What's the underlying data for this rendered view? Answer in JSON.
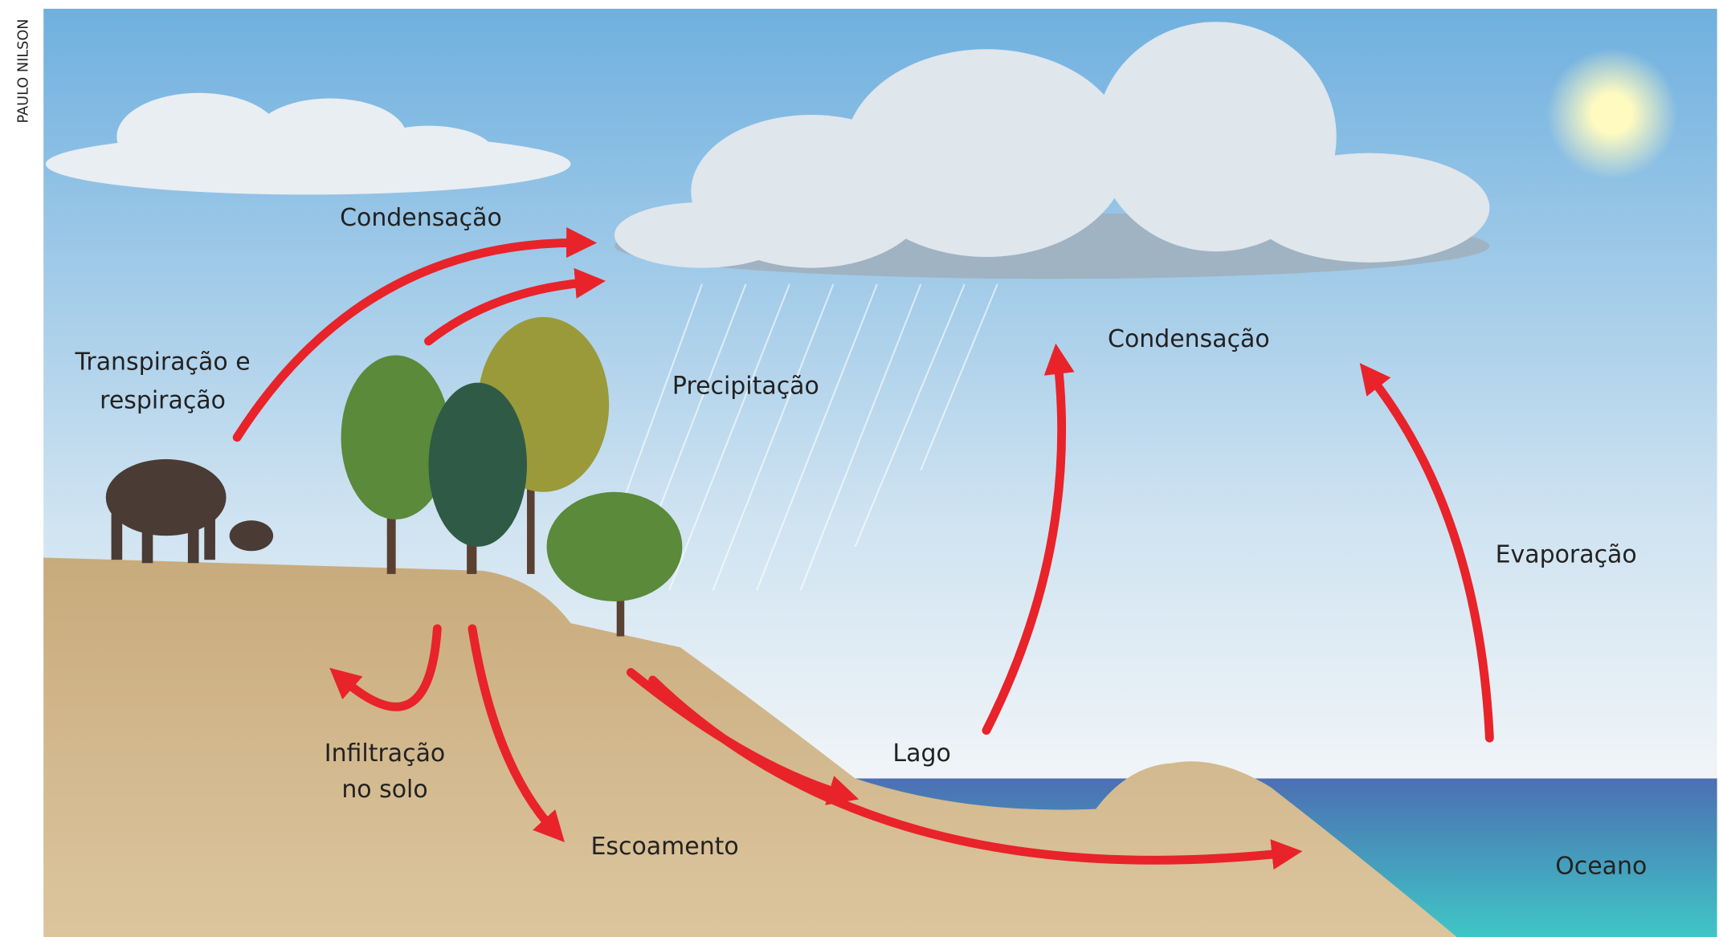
{
  "credit": "PAULO NILSON",
  "labels": [
    "Condensação",
    "Transpiração e",
    "respiração",
    "Precipitação",
    "Condensação",
    "Evaporação",
    "Infiltração",
    "no solo",
    "Escoamento",
    "Lago",
    "Oceano"
  ]
}
